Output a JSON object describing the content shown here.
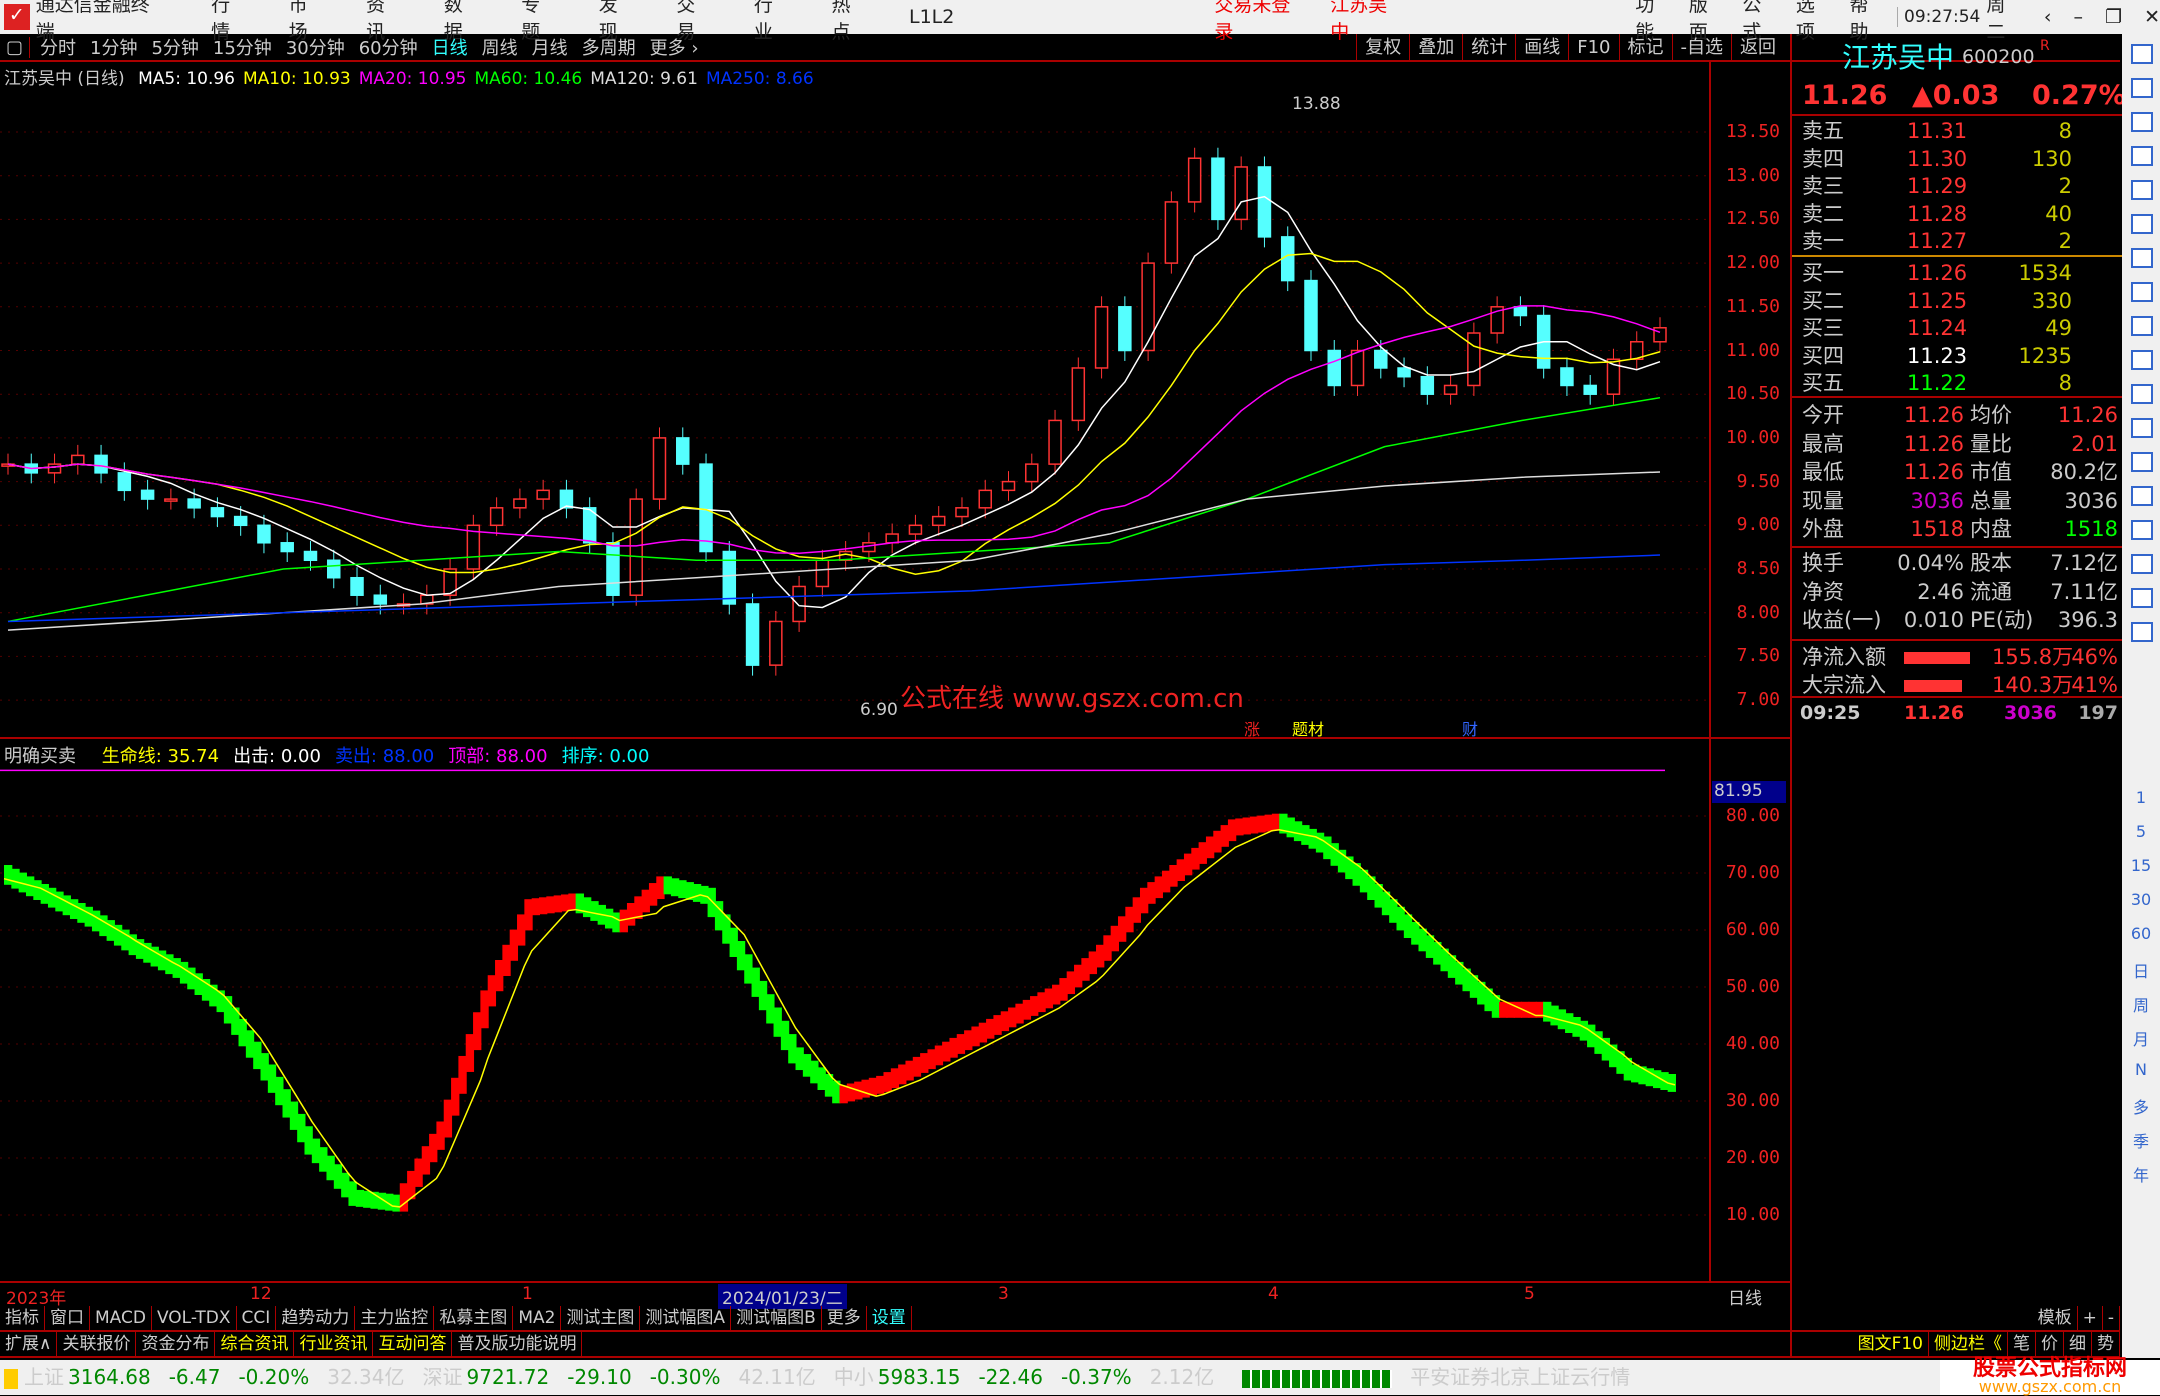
{
  "app": {
    "title": "通达信金融终端",
    "menus": [
      "行情",
      "市场",
      "资讯",
      "数据",
      "专题",
      "发现",
      "交易",
      "行业",
      "热点",
      "L1L2"
    ],
    "login": "交易未登录",
    "stock_title": "江苏吴中",
    "right_menus": [
      "功能",
      "版面",
      "公式",
      "选项",
      "帮助"
    ],
    "time": "09:27:54",
    "weekday": "周二",
    "win_buttons": [
      "‹",
      "–",
      "❐",
      "✕"
    ]
  },
  "toolbar": {
    "periods": [
      "分时",
      "1分钟",
      "5分钟",
      "15分钟",
      "30分钟",
      "60分钟",
      "日线",
      "周线",
      "月线",
      "多周期",
      "更多 ›"
    ],
    "selected": "日线",
    "right": [
      "复权",
      "叠加",
      "统计",
      "画线",
      "F10",
      "标记",
      "-自选",
      "返回"
    ]
  },
  "ma": {
    "title": "江苏吴中 (日线)",
    "items": [
      {
        "label": "MA5: 10.96",
        "color": "#ffffff"
      },
      {
        "label": "MA10: 10.93",
        "color": "#ffff00"
      },
      {
        "label": "MA20: 10.95",
        "color": "#ff00ff"
      },
      {
        "label": "MA60: 10.46",
        "color": "#00ff00"
      },
      {
        "label": "MA120: 9.61",
        "color": "#dddddd"
      },
      {
        "label": "MA250: 8.66",
        "color": "#0033ff"
      }
    ]
  },
  "chart_data": [
    {
      "type": "candlestick",
      "yticks": [
        "13.50",
        "13.00",
        "12.50",
        "12.00",
        "11.50",
        "11.00",
        "10.50",
        "10.00",
        "9.50",
        "9.00",
        "8.50",
        "8.00",
        "7.50",
        "7.00"
      ],
      "ylim": [
        7.0,
        13.5
      ],
      "high_label": "13.88",
      "low_label": "6.90",
      "close": [
        9.7,
        9.6,
        9.7,
        9.8,
        9.6,
        9.4,
        9.3,
        9.3,
        9.2,
        9.1,
        9.0,
        8.8,
        8.7,
        8.6,
        8.4,
        8.2,
        8.1,
        8.1,
        8.2,
        8.5,
        9.0,
        9.2,
        9.3,
        9.4,
        9.2,
        8.8,
        8.2,
        9.3,
        10.0,
        9.7,
        8.7,
        8.1,
        7.4,
        7.9,
        8.3,
        8.6,
        8.7,
        8.8,
        8.9,
        9.0,
        9.1,
        9.2,
        9.4,
        9.5,
        9.7,
        10.2,
        10.8,
        11.5,
        11.0,
        12.0,
        12.7,
        13.2,
        12.5,
        13.1,
        12.3,
        11.8,
        11.0,
        10.6,
        11.0,
        10.8,
        10.7,
        10.5,
        10.6,
        11.2,
        11.5,
        11.4,
        10.8,
        10.6,
        10.5,
        10.9,
        11.1,
        11.26
      ],
      "ma_lines": [
        {
          "name": "MA60",
          "color": "#00ff00",
          "values": [
            7.9,
            8.2,
            8.5,
            8.6,
            8.7,
            8.6,
            8.6,
            8.7,
            8.8,
            9.3,
            9.9,
            10.2,
            10.46
          ]
        },
        {
          "name": "MA120",
          "color": "#dddddd",
          "values": [
            7.8,
            7.9,
            8.0,
            8.1,
            8.3,
            8.4,
            8.5,
            8.6,
            8.9,
            9.3,
            9.45,
            9.55,
            9.61
          ]
        },
        {
          "name": "MA250",
          "color": "#0033ff",
          "values": [
            7.9,
            7.95,
            8.0,
            8.05,
            8.1,
            8.15,
            8.2,
            8.25,
            8.35,
            8.45,
            8.55,
            8.6,
            8.66
          ]
        }
      ],
      "markers": [
        "涨",
        "题材",
        "财"
      ],
      "watermark": "公式在线  www.gszx.com.cn"
    },
    {
      "type": "line",
      "title": "明确买卖",
      "legend": [
        {
          "label": "生命线: 35.74",
          "color": "#ffff00"
        },
        {
          "label": "出击: 0.00",
          "color": "#ffffff"
        },
        {
          "label": "卖出: 88.00",
          "color": "#0033ff"
        },
        {
          "label": "顶部: 88.00",
          "color": "#ff00ff"
        },
        {
          "label": "排序: 0.00",
          "color": "#00ffff"
        }
      ],
      "yticks": [
        "80.00",
        "70.00",
        "60.00",
        "50.00",
        "40.00",
        "30.00",
        "20.00",
        "10.00"
      ],
      "ylim": [
        0,
        85
      ],
      "current_label": "81.95",
      "values": [
        70,
        66,
        62,
        57,
        53,
        47,
        35,
        22,
        13,
        12,
        25,
        48,
        64,
        65,
        61,
        68,
        66,
        52,
        38,
        31,
        33,
        37,
        41,
        45,
        49,
        56,
        66,
        72,
        78,
        79,
        75,
        68,
        60,
        53,
        46,
        46,
        42,
        35,
        33
      ]
    }
  ],
  "xaxis": {
    "labels": [
      "2023年",
      "12",
      "1",
      "2024/01/23/二",
      "3",
      "4",
      "5"
    ],
    "period": "日线"
  },
  "tabs1": [
    "指标",
    "窗口",
    "MACD",
    "VOL-TDX",
    "CCI",
    "趋势动力",
    "主力监控",
    "私募主图",
    "MA2",
    "测试主图",
    "测试幅图A",
    "测试幅图B",
    "更多",
    "设置"
  ],
  "tabs1_right": [
    "模板",
    "+",
    "-"
  ],
  "tabs2": [
    "扩展∧",
    "关联报价",
    "资金分布",
    "综合资讯",
    "行业资讯",
    "互动问答",
    "普及版功能说明"
  ],
  "tabs2_right": [
    "图文F10",
    "侧边栏《",
    "笔",
    "价",
    "细",
    "势"
  ],
  "quote": {
    "name": "江苏吴中",
    "code": "600200",
    "flag": "R",
    "price": "11.26",
    "change": "▲0.03",
    "pct": "0.27%",
    "asks": [
      [
        "卖五",
        "11.31",
        "8"
      ],
      [
        "卖四",
        "11.30",
        "130"
      ],
      [
        "卖三",
        "11.29",
        "2"
      ],
      [
        "卖二",
        "11.28",
        "40"
      ],
      [
        "卖一",
        "11.27",
        "2"
      ]
    ],
    "bids": [
      [
        "买一",
        "11.26",
        "1534"
      ],
      [
        "买二",
        "11.25",
        "330"
      ],
      [
        "买三",
        "11.24",
        "49"
      ],
      [
        "买四",
        "11.23",
        "1235"
      ],
      [
        "买五",
        "11.22",
        "8"
      ]
    ],
    "stats": [
      [
        "今开",
        "11.26",
        "均价",
        "11.26"
      ],
      [
        "最高",
        "11.26",
        "量比",
        "2.01"
      ],
      [
        "最低",
        "11.26",
        "市值",
        "80.2亿"
      ],
      [
        "现量",
        "3036",
        "总量",
        "3036"
      ],
      [
        "外盘",
        "1518",
        "内盘",
        "1518"
      ]
    ],
    "stats2": [
      [
        "换手",
        "0.04%",
        "股本",
        "7.12亿"
      ],
      [
        "净资",
        "2.46",
        "流通",
        "7.11亿"
      ],
      [
        "收益(一)",
        "0.010",
        "PE(动)",
        "396.3"
      ]
    ],
    "flows": [
      [
        "净流入额",
        "155.8万",
        "46%"
      ],
      [
        "大宗流入",
        "140.3万",
        "41%"
      ]
    ],
    "tick": [
      "09:25",
      "11.26",
      "3036",
      "197"
    ]
  },
  "sideicons": [
    "1",
    "5",
    "15",
    "30",
    "60",
    "日",
    "周",
    "月",
    "N",
    "多",
    "季",
    "年"
  ],
  "status": {
    "items": [
      [
        "上证",
        "3164.68",
        "-6.47",
        "-0.20%",
        "32.34亿"
      ],
      [
        "深证",
        "9721.72",
        "-29.10",
        "-0.30%",
        "42.11亿"
      ],
      [
        "中小",
        "5983.15",
        "-22.46",
        "-0.37%",
        "2.12亿"
      ]
    ],
    "source": "平安证券北京上证云行情",
    "logo": "股票公式指标网",
    "logo_url": "www.gszx.com.cn"
  }
}
